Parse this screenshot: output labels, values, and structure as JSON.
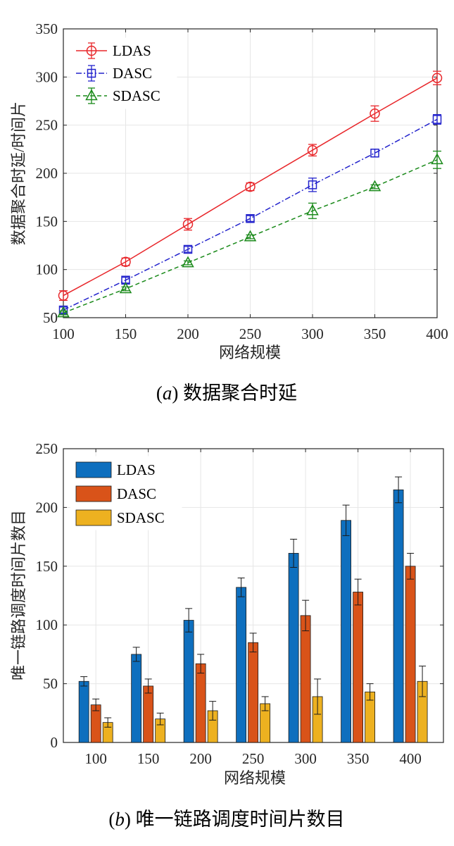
{
  "chart_data": [
    {
      "type": "line",
      "caption_letter": "a",
      "caption_text": " 数据聚合时延",
      "xlabel": "网络规模",
      "ylabel": "数据聚合时延/时间片",
      "xlim": [
        100,
        400
      ],
      "ylim": [
        50,
        350
      ],
      "xticks": [
        100,
        150,
        200,
        250,
        300,
        350,
        400
      ],
      "yticks": [
        50,
        100,
        150,
        200,
        250,
        300,
        350
      ],
      "grid": true,
      "legend_position": "top-left",
      "x": [
        100,
        150,
        200,
        250,
        300,
        350,
        400
      ],
      "series": [
        {
          "name": "LDAS",
          "color": "#e8262a",
          "marker": "circle",
          "line": "solid",
          "values": [
            73,
            108,
            147,
            186,
            224,
            262,
            299
          ],
          "errors": [
            5,
            4,
            6,
            4,
            6,
            8,
            7
          ]
        },
        {
          "name": "DASC",
          "color": "#2222cc",
          "marker": "square",
          "line": "dashdot",
          "values": [
            58,
            89,
            121,
            153,
            188,
            221,
            256
          ],
          "errors": [
            3,
            3,
            3,
            3,
            7,
            4,
            5
          ]
        },
        {
          "name": "SDASC",
          "color": "#1a8a1a",
          "marker": "triangle",
          "line": "dashed",
          "values": [
            55,
            80,
            107,
            134,
            161,
            186,
            214
          ],
          "errors": [
            2,
            2,
            2,
            2,
            8,
            2,
            9
          ]
        }
      ]
    },
    {
      "type": "bar",
      "caption_letter": "b",
      "caption_text": " 唯一链路调度时间片数目",
      "xlabel": "网络规模",
      "ylabel": "唯一链路调度时间片数目",
      "ylim": [
        0,
        250
      ],
      "yticks": [
        0,
        50,
        100,
        150,
        200,
        250
      ],
      "grid": true,
      "legend_position": "top-left",
      "categories": [
        "100",
        "150",
        "200",
        "250",
        "300",
        "350",
        "400"
      ],
      "series": [
        {
          "name": "LDAS",
          "color": "#0e6fbe",
          "values": [
            52,
            75,
            104,
            132,
            161,
            189,
            215
          ],
          "errors": [
            4,
            6,
            10,
            8,
            12,
            13,
            11
          ]
        },
        {
          "name": "DASC",
          "color": "#d95319",
          "values": [
            32,
            48,
            67,
            85,
            108,
            128,
            150
          ],
          "errors": [
            5,
            6,
            8,
            8,
            13,
            11,
            11
          ]
        },
        {
          "name": "SDASC",
          "color": "#edb120",
          "values": [
            17,
            20,
            27,
            33,
            39,
            43,
            52
          ],
          "errors": [
            4,
            5,
            8,
            6,
            15,
            7,
            13
          ]
        }
      ]
    }
  ]
}
